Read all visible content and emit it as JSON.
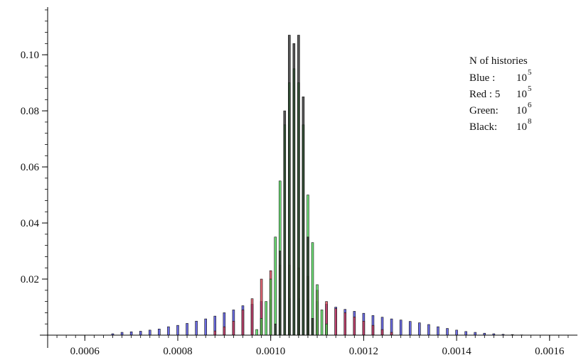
{
  "chart_data": {
    "type": "bar",
    "title": "",
    "xlabel": "",
    "ylabel": "",
    "xlim": [
      0.00052,
      0.00166
    ],
    "ylim": [
      0,
      0.117
    ],
    "x_ticks": [
      {
        "value": 0.0006,
        "label": "0.0006"
      },
      {
        "value": 0.0008,
        "label": "0.0008"
      },
      {
        "value": 0.001,
        "label": "0.0010"
      },
      {
        "value": 0.0012,
        "label": "0.0012"
      },
      {
        "value": 0.0014,
        "label": "0.0014"
      },
      {
        "value": 0.0016,
        "label": "0.0016"
      }
    ],
    "y_ticks": [
      {
        "value": 0.02,
        "label": "0.02"
      },
      {
        "value": 0.04,
        "label": "0.04"
      },
      {
        "value": 0.06,
        "label": "0.06"
      },
      {
        "value": 0.08,
        "label": "0.08"
      },
      {
        "value": 0.1,
        "label": "0.10"
      }
    ],
    "grid": false,
    "legend": {
      "placement": "top-right",
      "title": "N of histories",
      "entries": [
        {
          "label": "Blue :",
          "value": "10",
          "exponent": "5"
        },
        {
          "label": "Red  : 5",
          "value": "10",
          "exponent": "5"
        },
        {
          "label": "Green:",
          "value": "10",
          "exponent": "6"
        },
        {
          "label": "Black:",
          "value": "10",
          "exponent": "8"
        }
      ]
    },
    "series": [
      {
        "color": "#3b3bd9",
        "bin_width": 4.5e-06,
        "points": [
          [
            0.00066,
            0.0005
          ],
          [
            0.00068,
            0.001
          ],
          [
            0.0007,
            0.0012
          ],
          [
            0.00072,
            0.0014
          ],
          [
            0.00074,
            0.0018
          ],
          [
            0.00076,
            0.0022
          ],
          [
            0.00078,
            0.003
          ],
          [
            0.0008,
            0.0035
          ],
          [
            0.00082,
            0.0042
          ],
          [
            0.00084,
            0.005
          ],
          [
            0.00086,
            0.0058
          ],
          [
            0.00088,
            0.0068
          ],
          [
            0.0009,
            0.008
          ],
          [
            0.00092,
            0.009
          ],
          [
            0.00094,
            0.0105
          ],
          [
            0.00096,
            0.011
          ],
          [
            0.00098,
            0.012
          ],
          [
            0.001,
            0.0125
          ],
          [
            0.00102,
            0.013
          ],
          [
            0.00104,
            0.013
          ],
          [
            0.00106,
            0.013
          ],
          [
            0.00108,
            0.0125
          ],
          [
            0.0011,
            0.012
          ],
          [
            0.00112,
            0.011
          ],
          [
            0.00114,
            0.01
          ],
          [
            0.00116,
            0.0092
          ],
          [
            0.00118,
            0.0085
          ],
          [
            0.0012,
            0.0078
          ],
          [
            0.00122,
            0.007
          ],
          [
            0.00124,
            0.0064
          ],
          [
            0.00126,
            0.0058
          ],
          [
            0.00128,
            0.0054
          ],
          [
            0.0013,
            0.0049
          ],
          [
            0.00132,
            0.0044
          ],
          [
            0.00134,
            0.0038
          ],
          [
            0.00136,
            0.003
          ],
          [
            0.00138,
            0.0024
          ],
          [
            0.0014,
            0.0018
          ],
          [
            0.00142,
            0.0013
          ],
          [
            0.00144,
            0.001
          ],
          [
            0.00146,
            0.0007
          ],
          [
            0.00148,
            0.0005
          ],
          [
            0.0015,
            0.0003
          ],
          [
            0.00152,
            0.0002
          ],
          [
            0.00154,
            0.0001
          ]
        ]
      },
      {
        "color": "#d9364a",
        "bin_width": 4.5e-06,
        "points": [
          [
            0.00088,
            0.0015
          ],
          [
            0.0009,
            0.003
          ],
          [
            0.00092,
            0.005
          ],
          [
            0.00094,
            0.009
          ],
          [
            0.00096,
            0.013
          ],
          [
            0.00098,
            0.02
          ],
          [
            0.001,
            0.023
          ],
          [
            0.00102,
            0.025
          ],
          [
            0.00104,
            0.025
          ],
          [
            0.00106,
            0.024
          ],
          [
            0.00108,
            0.021
          ],
          [
            0.0011,
            0.016
          ],
          [
            0.00112,
            0.012
          ],
          [
            0.00114,
            0.0095
          ],
          [
            0.00116,
            0.008
          ],
          [
            0.00118,
            0.0065
          ],
          [
            0.0012,
            0.005
          ],
          [
            0.00122,
            0.0035
          ],
          [
            0.00124,
            0.002
          ],
          [
            0.00126,
            0.001
          ]
        ]
      },
      {
        "color": "#3fd64a",
        "bin_width": 4.5e-06,
        "points": [
          [
            0.00097,
            0.002
          ],
          [
            0.00098,
            0.006
          ],
          [
            0.00099,
            0.012
          ],
          [
            0.001,
            0.02
          ],
          [
            0.00101,
            0.035
          ],
          [
            0.00102,
            0.055
          ],
          [
            0.00103,
            0.075
          ],
          [
            0.00104,
            0.09
          ],
          [
            0.00105,
            0.095
          ],
          [
            0.00106,
            0.09
          ],
          [
            0.00107,
            0.075
          ],
          [
            0.00108,
            0.05
          ],
          [
            0.00109,
            0.033
          ],
          [
            0.0011,
            0.018
          ],
          [
            0.00111,
            0.009
          ],
          [
            0.00112,
            0.004
          ]
        ]
      },
      {
        "color": "#1f1f1f",
        "bin_width": 4.5e-06,
        "points": [
          [
            0.00101,
            0.004
          ],
          [
            0.00102,
            0.03
          ],
          [
            0.00103,
            0.08
          ],
          [
            0.00104,
            0.107
          ],
          [
            0.00105,
            0.104
          ],
          [
            0.00106,
            0.107
          ],
          [
            0.00107,
            0.085
          ],
          [
            0.00108,
            0.035
          ],
          [
            0.00109,
            0.006
          ]
        ]
      }
    ]
  }
}
